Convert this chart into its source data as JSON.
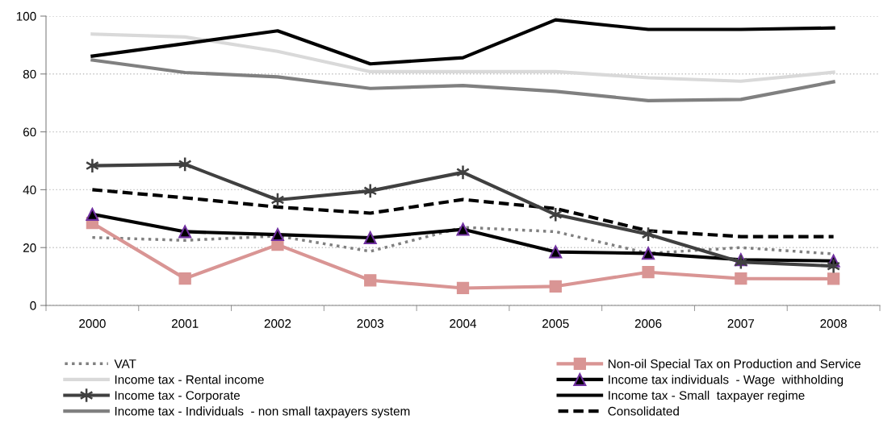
{
  "chart_data": {
    "type": "line",
    "categories": [
      "2000",
      "2001",
      "2002",
      "2003",
      "2004",
      "2005",
      "2006",
      "2007",
      "2008"
    ],
    "ylim": [
      0,
      100
    ],
    "yticks": [
      0,
      20,
      40,
      60,
      80,
      100
    ],
    "grid": "y",
    "legend": "bottom",
    "series": [
      {
        "name": "VAT",
        "color": "#808080",
        "line_style": "dotted",
        "marker": "none",
        "values": [
          23.5,
          22.5,
          24,
          18.7,
          27,
          25.5,
          18,
          20,
          17.8
        ]
      },
      {
        "name": "Income tax - Rental income",
        "color": "#d9d9d9",
        "line_style": "solid",
        "marker": "none",
        "values": [
          93.8,
          92.8,
          87.8,
          80.8,
          80.8,
          80.8,
          78.7,
          77.5,
          80.6
        ]
      },
      {
        "name": "Income tax - Corporate",
        "color": "#404040",
        "line_style": "solid",
        "marker": "cross",
        "values": [
          48.3,
          48.8,
          36.5,
          39.6,
          46,
          31.4,
          24.6,
          15,
          13.6
        ]
      },
      {
        "name": "Income tax - Individuals  - non small taxpayers system",
        "color": "#808080",
        "line_style": "solid",
        "marker": "none",
        "values": [
          84.8,
          80.5,
          79,
          75,
          76,
          74,
          70.8,
          71.2,
          77.3
        ]
      },
      {
        "name": "Non-oil Special Tax on Production and Service",
        "color": "#d99594",
        "line_style": "solid",
        "marker": "square",
        "values": [
          28.5,
          9.3,
          21,
          8.7,
          6,
          6.6,
          11.5,
          9.3,
          9.2
        ]
      },
      {
        "name": "Income tax individuals  - Wage  withholding",
        "color": "#000000",
        "line_style": "solid",
        "marker": "triangle",
        "values": [
          31.5,
          25.5,
          24.5,
          23.4,
          26.3,
          18.5,
          18,
          15.8,
          15.4
        ]
      },
      {
        "name": "Income tax - Small  taxpayer regime",
        "color": "#000000",
        "line_style": "solid",
        "marker": "none",
        "values": [
          86.2,
          90.5,
          94.9,
          83.5,
          85.6,
          98.7,
          95.4,
          95.4,
          95.9
        ]
      },
      {
        "name": "Consolidated",
        "color": "#000000",
        "line_style": "dashed",
        "marker": "none",
        "values": [
          40,
          37.2,
          34,
          31.9,
          36.6,
          33.5,
          25.8,
          23.8,
          23.8
        ]
      }
    ]
  }
}
